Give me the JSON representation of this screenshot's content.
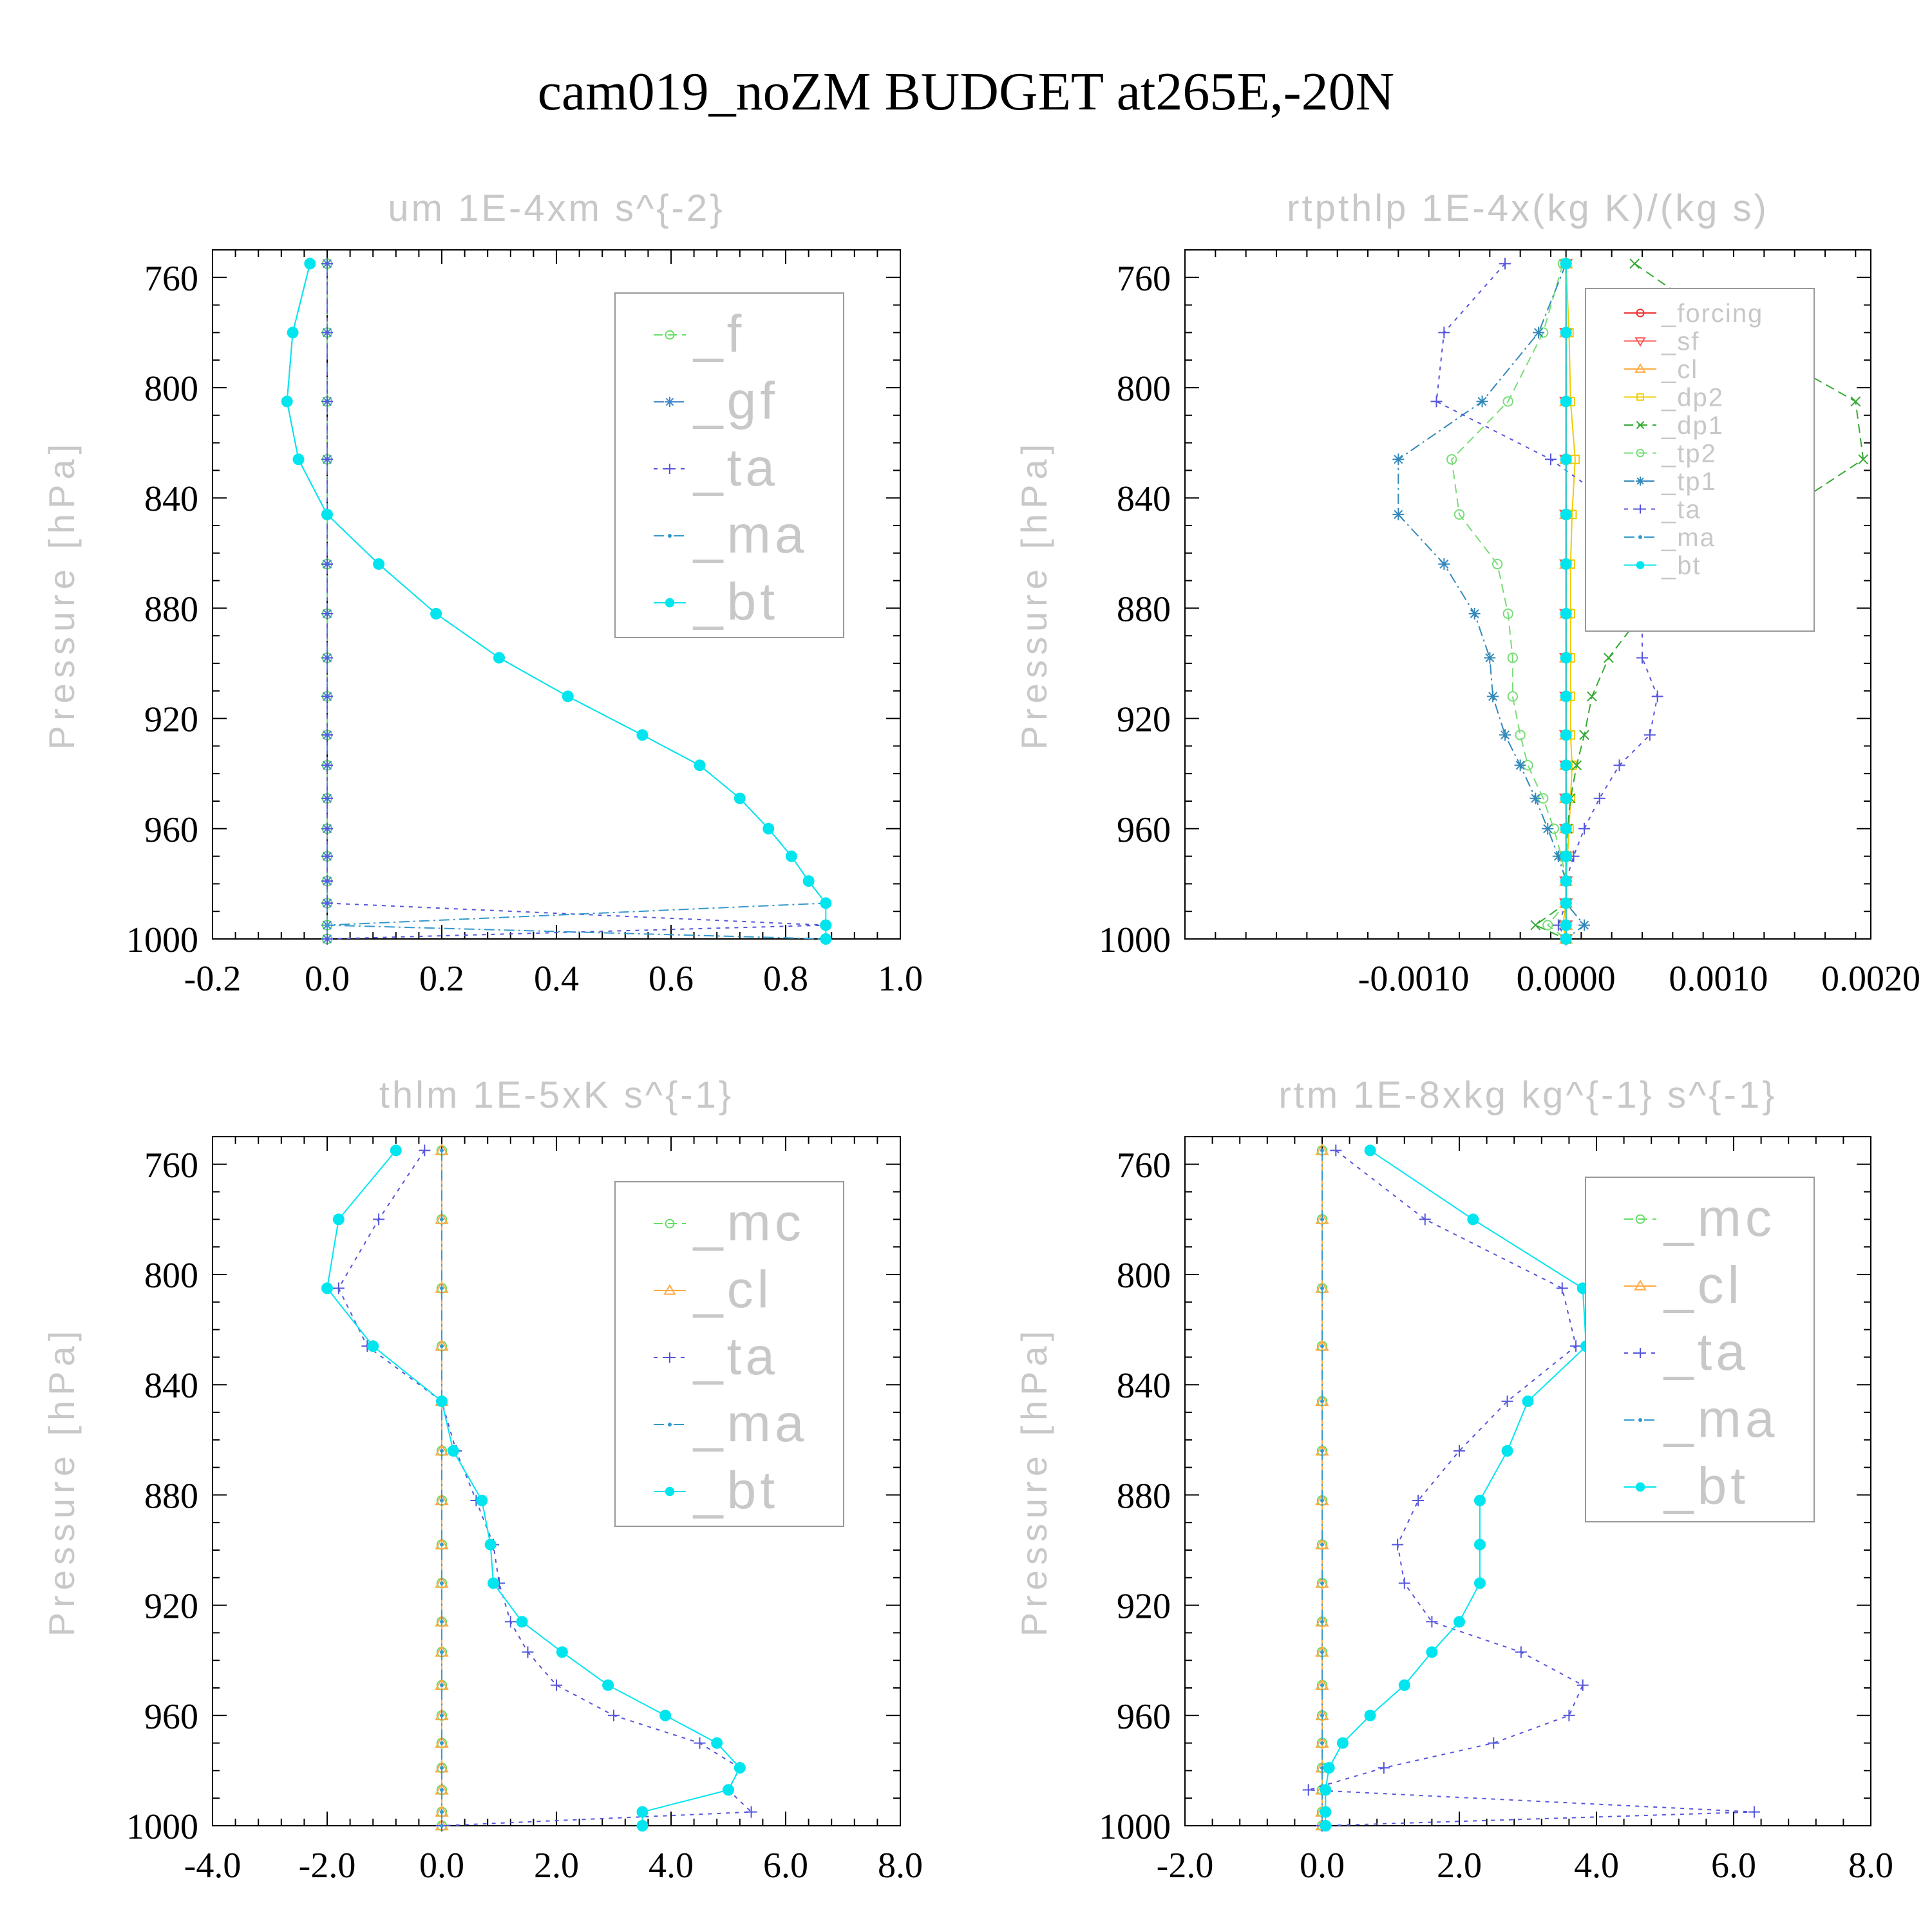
{
  "figure": {
    "title": "cam019_noZM  BUDGET at265E,-20N"
  },
  "styles": {
    "_f": "#66dd66",
    "_gf": "#4488cc",
    "_ta": "#5555dd",
    "_ma": "#3399cc",
    "_bt": "#00e5ee",
    "_forcing": "#ee3333",
    "_sf": "#ff5555",
    "_cl": "#ffaa44",
    "_dp2": "#eecc00",
    "_dp1": "#33aa33",
    "_tp2": "#77dd77",
    "_tp1": "#3388bb",
    "_mc": "#66dd66"
  },
  "chart_data": [
    {
      "type": "line",
      "title": "um   1E-4xm s^{-2}",
      "ylabel": "Pressure [hPa]",
      "xlim": [
        -0.2,
        1.0
      ],
      "ylim": [
        1000,
        750
      ],
      "xticks": [
        "-0.2",
        "0.0",
        "0.2",
        "0.4",
        "0.6",
        "0.8",
        "1.0"
      ],
      "yticks": [
        "760",
        "800",
        "840",
        "880",
        "920",
        "960",
        "1000"
      ],
      "legend_position": "top-right",
      "legend": [
        "_f",
        "_gf",
        "_ta",
        "_ma",
        "_bt"
      ],
      "y": [
        755,
        780,
        805,
        826,
        846,
        864,
        882,
        898,
        912,
        926,
        937,
        949,
        960,
        970,
        979,
        987,
        995,
        1000
      ],
      "series": [
        {
          "name": "_f",
          "values": [
            0,
            0,
            0,
            0,
            0,
            0,
            0,
            0,
            0,
            0,
            0,
            0,
            0,
            0,
            0,
            0,
            0,
            0
          ]
        },
        {
          "name": "_gf",
          "values": [
            0,
            0,
            0,
            0,
            0,
            0,
            0,
            0,
            0,
            0,
            0,
            0,
            0,
            0,
            0,
            0,
            0,
            0
          ]
        },
        {
          "name": "_ta",
          "values": [
            0,
            0,
            0,
            0,
            0,
            0,
            0,
            0,
            0,
            0,
            0,
            0,
            0,
            0,
            0,
            0,
            0.87,
            0
          ]
        },
        {
          "name": "_ma",
          "values": [
            -0.03,
            -0.06,
            -0.07,
            -0.05,
            0.0,
            0.09,
            0.19,
            0.3,
            0.42,
            0.55,
            0.65,
            0.72,
            0.77,
            0.81,
            0.84,
            0.87,
            0,
            0.87
          ]
        },
        {
          "name": "_bt",
          "values": [
            -0.03,
            -0.06,
            -0.07,
            -0.05,
            0.0,
            0.09,
            0.19,
            0.3,
            0.42,
            0.55,
            0.65,
            0.72,
            0.77,
            0.81,
            0.84,
            0.87,
            0.87,
            0.87
          ]
        }
      ]
    },
    {
      "type": "line",
      "title": "rtpthlp   1E-4x(kg K)/(kg s)",
      "ylabel": "Pressure [hPa]",
      "xlim": [
        -0.0025,
        0.002
      ],
      "ylim": [
        1000,
        750
      ],
      "xticks": [
        "-0.0010",
        "0.0000",
        "0.0010",
        "0.0020"
      ],
      "yticks": [
        "760",
        "800",
        "840",
        "880",
        "920",
        "960",
        "1000"
      ],
      "legend_position": "top-right",
      "legend": [
        "_forcing",
        "_sf",
        "_cl",
        "_dp2",
        "_dp1",
        "_tp2",
        "_tp1",
        "_ta",
        "_ma",
        "_bt"
      ],
      "y": [
        755,
        780,
        805,
        826,
        846,
        864,
        882,
        898,
        912,
        926,
        937,
        949,
        960,
        970,
        979,
        987,
        995,
        1000
      ],
      "series": [
        {
          "name": "_forcing",
          "values": [
            0,
            0,
            0,
            0,
            0,
            0,
            0,
            0,
            0,
            0,
            0,
            0,
            0,
            0,
            0,
            0,
            0,
            0
          ]
        },
        {
          "name": "_sf",
          "values": [
            0,
            0,
            0,
            0,
            0,
            0,
            0,
            0,
            0,
            0,
            0,
            0,
            0,
            0,
            0,
            0,
            0,
            0
          ]
        },
        {
          "name": "_cl",
          "values": [
            0,
            0,
            0,
            0,
            0,
            0,
            0,
            0,
            0,
            0,
            0,
            0,
            0,
            0,
            0,
            0,
            0,
            0
          ]
        },
        {
          "name": "_dp2",
          "values": [
            0,
            2e-05,
            3e-05,
            6e-05,
            4e-05,
            3e-05,
            3e-05,
            3e-05,
            3e-05,
            3e-05,
            4e-05,
            3e-05,
            2e-05,
            1e-05,
            0,
            0,
            -2e-05,
            0
          ]
        },
        {
          "name": "_dp1",
          "values": [
            0.00045,
            0.0011,
            0.0019,
            0.00195,
            0.0014,
            0.0009,
            0.0005,
            0.00028,
            0.00017,
            0.00012,
            7e-05,
            3e-05,
            1e-05,
            0,
            0,
            0,
            -0.0002,
            0
          ]
        },
        {
          "name": "_tp2",
          "values": [
            -2e-05,
            -0.00015,
            -0.00038,
            -0.00075,
            -0.0007,
            -0.00045,
            -0.00038,
            -0.00035,
            -0.00035,
            -0.0003,
            -0.00025,
            -0.00015,
            -8e-05,
            -3e-05,
            0,
            0,
            -0.00012,
            0
          ]
        },
        {
          "name": "_tp1",
          "values": [
            0,
            -0.00018,
            -0.00055,
            -0.0011,
            -0.0011,
            -0.0008,
            -0.0006,
            -0.0005,
            -0.00048,
            -0.0004,
            -0.0003,
            -0.0002,
            -0.00012,
            -5e-05,
            0,
            0,
            0.00012,
            0
          ]
        },
        {
          "name": "_ta",
          "values": [
            -0.0004,
            -0.0008,
            -0.00085,
            -0.0001,
            0.0004,
            0.0004,
            0.0005,
            0.0005,
            0.0006,
            0.00055,
            0.00035,
            0.00022,
            0.00012,
            5e-05,
            0,
            0,
            -5e-05,
            0
          ]
        },
        {
          "name": "_ma",
          "values": [
            0,
            0,
            0,
            0,
            0,
            0,
            0,
            0,
            0,
            0,
            0,
            0,
            0,
            0,
            0,
            0,
            0,
            0
          ]
        },
        {
          "name": "_bt",
          "values": [
            0,
            0,
            0,
            0,
            0,
            0,
            0,
            0,
            0,
            0,
            0,
            0,
            0,
            0,
            0,
            0,
            0,
            0
          ]
        }
      ]
    },
    {
      "type": "line",
      "title": "thlm   1E-5xK s^{-1}",
      "ylabel": "Pressure [hPa]",
      "xlim": [
        -4.0,
        8.0
      ],
      "ylim": [
        1000,
        750
      ],
      "xticks": [
        "-4.0",
        "-2.0",
        "0.0",
        "2.0",
        "4.0",
        "6.0",
        "8.0"
      ],
      "yticks": [
        "760",
        "800",
        "840",
        "880",
        "920",
        "960",
        "1000"
      ],
      "legend_position": "top-right",
      "legend": [
        "_mc",
        "_cl",
        "_ta",
        "_ma",
        "_bt"
      ],
      "y": [
        755,
        780,
        805,
        826,
        846,
        864,
        882,
        898,
        912,
        926,
        937,
        949,
        960,
        970,
        979,
        987,
        995,
        1000
      ],
      "series": [
        {
          "name": "_mc",
          "values": [
            0,
            0,
            0,
            0,
            0,
            0,
            0,
            0,
            0,
            0,
            0,
            0,
            0,
            0,
            0,
            0,
            0,
            0
          ]
        },
        {
          "name": "_cl",
          "values": [
            0,
            0,
            0,
            0,
            0,
            0,
            0,
            0,
            0,
            0,
            0,
            0,
            0,
            0,
            0,
            0,
            0,
            0
          ]
        },
        {
          "name": "_ta",
          "values": [
            -0.3,
            -1.1,
            -1.8,
            -1.3,
            0,
            0.25,
            0.6,
            0.9,
            1.0,
            1.2,
            1.5,
            2.0,
            3.0,
            4.5,
            5.2,
            5.0,
            5.4,
            0
          ]
        },
        {
          "name": "_ma",
          "values": [
            0,
            0,
            0,
            0,
            0,
            0,
            0,
            0,
            0,
            0,
            0,
            0,
            0,
            0,
            0,
            0,
            0,
            0
          ]
        },
        {
          "name": "_bt",
          "values": [
            -0.8,
            -1.8,
            -2.0,
            -1.2,
            0,
            0.2,
            0.7,
            0.85,
            0.9,
            1.4,
            2.1,
            2.9,
            3.9,
            4.8,
            5.2,
            5.0,
            3.5,
            3.5
          ]
        }
      ]
    },
    {
      "type": "line",
      "title": "rtm   1E-8xkg kg^{-1} s^{-1}",
      "ylabel": "Pressure [hPa]",
      "xlim": [
        -2.0,
        8.0
      ],
      "ylim": [
        1000,
        750
      ],
      "xticks": [
        "-2.0",
        "0.0",
        "2.0",
        "4.0",
        "6.0",
        "8.0"
      ],
      "yticks": [
        "760",
        "800",
        "840",
        "880",
        "920",
        "960",
        "1000"
      ],
      "legend_position": "top-right",
      "legend": [
        "_mc",
        "_cl",
        "_ta",
        "_ma",
        "_bt"
      ],
      "y": [
        755,
        780,
        805,
        826,
        846,
        864,
        882,
        898,
        912,
        926,
        937,
        949,
        960,
        970,
        979,
        987,
        995,
        1000
      ],
      "series": [
        {
          "name": "_mc",
          "values": [
            0,
            0,
            0,
            0,
            0,
            0,
            0,
            0,
            0,
            0,
            0,
            0,
            0,
            0,
            0,
            0,
            0,
            0
          ]
        },
        {
          "name": "_cl",
          "values": [
            0,
            0,
            0,
            0,
            0,
            0,
            0,
            0,
            0,
            0,
            0,
            0,
            0,
            0,
            0,
            0,
            0,
            0
          ]
        },
        {
          "name": "_ta",
          "values": [
            0.2,
            1.5,
            3.5,
            3.7,
            2.7,
            2.0,
            1.4,
            1.1,
            1.2,
            1.6,
            2.9,
            3.8,
            3.6,
            2.5,
            0.9,
            -0.2,
            6.3,
            0
          ]
        },
        {
          "name": "_ma",
          "values": [
            0,
            0,
            0,
            0,
            0,
            0,
            0,
            0,
            0,
            0,
            0,
            0,
            0,
            0,
            0,
            0,
            0,
            0
          ]
        },
        {
          "name": "_bt",
          "values": [
            0.7,
            2.2,
            3.8,
            3.85,
            3.0,
            2.7,
            2.3,
            2.3,
            2.3,
            2.0,
            1.6,
            1.2,
            0.7,
            0.3,
            0.1,
            0.05,
            0.05,
            0.05
          ]
        }
      ]
    }
  ]
}
